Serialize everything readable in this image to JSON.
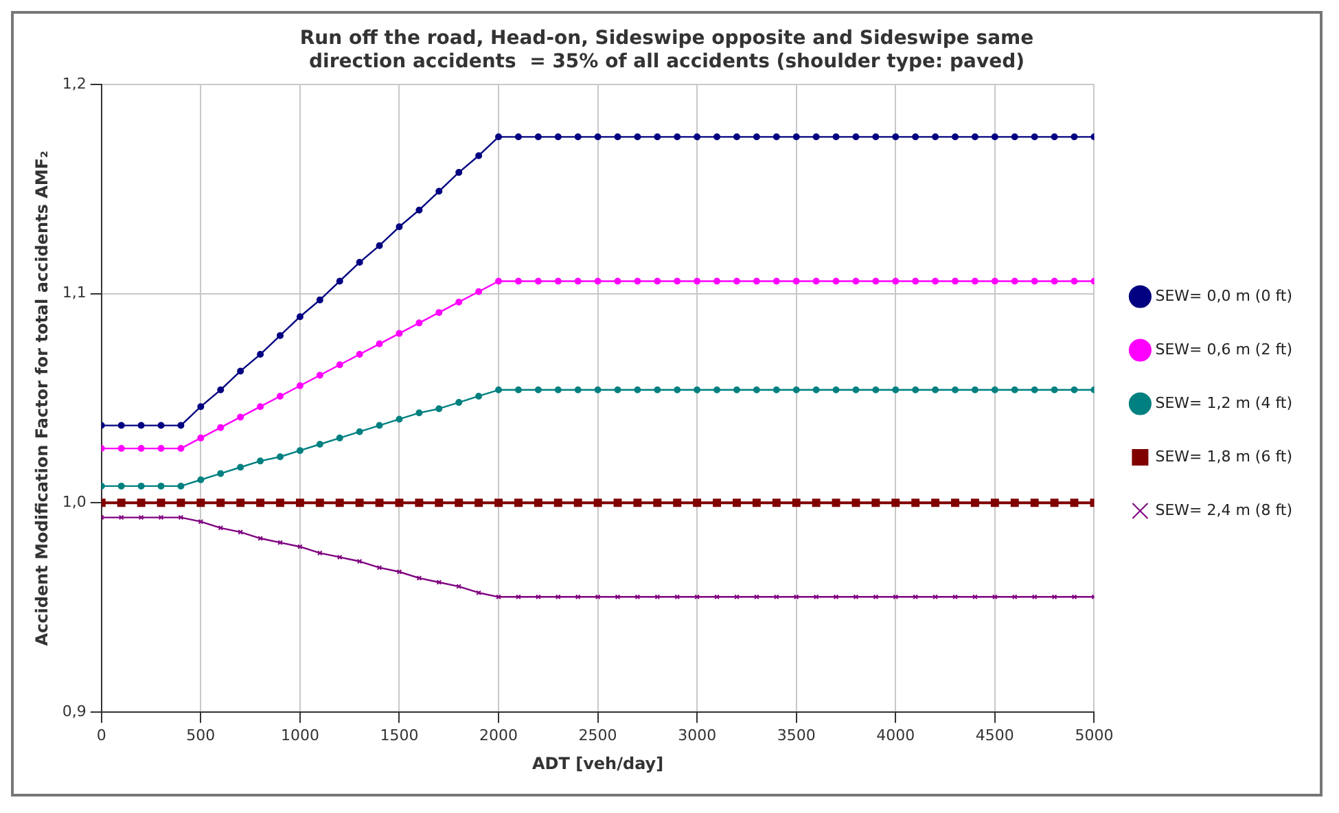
{
  "chart_data": {
    "type": "line",
    "title": "Run off the road, Head-on, Sideswipe opposite and Sideswipe same direction accidents  = 35% of all accidents (shoulder type: paved)",
    "xlabel": "ADT [veh/day]",
    "ylabel": "Accident Modification Factor for total accidents AMF₂",
    "x": [
      0,
      100,
      200,
      300,
      400,
      500,
      600,
      700,
      800,
      900,
      1000,
      1100,
      1200,
      1300,
      1400,
      1500,
      1600,
      1700,
      1800,
      1900,
      2000,
      2100,
      2200,
      2300,
      2400,
      2500,
      2600,
      2700,
      2800,
      2900,
      3000,
      3100,
      3200,
      3300,
      3400,
      3500,
      3600,
      3700,
      3800,
      3900,
      4000,
      4100,
      4200,
      4300,
      4400,
      4500,
      4600,
      4700,
      4800,
      4900,
      5000
    ],
    "series": [
      {
        "name": "SEW= 0,0 m (0 ft)",
        "color": "#000080",
        "marker": "circle",
        "values": [
          1.037,
          1.037,
          1.037,
          1.037,
          1.037,
          1.046,
          1.054,
          1.063,
          1.071,
          1.08,
          1.089,
          1.097,
          1.106,
          1.115,
          1.123,
          1.132,
          1.14,
          1.149,
          1.158,
          1.166,
          1.175,
          1.175,
          1.175,
          1.175,
          1.175,
          1.175,
          1.175,
          1.175,
          1.175,
          1.175,
          1.175,
          1.175,
          1.175,
          1.175,
          1.175,
          1.175,
          1.175,
          1.175,
          1.175,
          1.175,
          1.175,
          1.175,
          1.175,
          1.175,
          1.175,
          1.175,
          1.175,
          1.175,
          1.175,
          1.175,
          1.175
        ]
      },
      {
        "name": "SEW= 0,6 m (2 ft)",
        "color": "#ff00ff",
        "marker": "circle",
        "values": [
          1.026,
          1.026,
          1.026,
          1.026,
          1.026,
          1.031,
          1.036,
          1.041,
          1.046,
          1.051,
          1.056,
          1.061,
          1.066,
          1.071,
          1.076,
          1.081,
          1.086,
          1.091,
          1.096,
          1.101,
          1.106,
          1.106,
          1.106,
          1.106,
          1.106,
          1.106,
          1.106,
          1.106,
          1.106,
          1.106,
          1.106,
          1.106,
          1.106,
          1.106,
          1.106,
          1.106,
          1.106,
          1.106,
          1.106,
          1.106,
          1.106,
          1.106,
          1.106,
          1.106,
          1.106,
          1.106,
          1.106,
          1.106,
          1.106,
          1.106,
          1.106
        ]
      },
      {
        "name": "SEW= 1,2 m (4 ft)",
        "color": "#008080",
        "marker": "circle",
        "values": [
          1.008,
          1.008,
          1.008,
          1.008,
          1.008,
          1.011,
          1.014,
          1.017,
          1.02,
          1.022,
          1.025,
          1.028,
          1.031,
          1.034,
          1.037,
          1.04,
          1.043,
          1.045,
          1.048,
          1.051,
          1.054,
          1.054,
          1.054,
          1.054,
          1.054,
          1.054,
          1.054,
          1.054,
          1.054,
          1.054,
          1.054,
          1.054,
          1.054,
          1.054,
          1.054,
          1.054,
          1.054,
          1.054,
          1.054,
          1.054,
          1.054,
          1.054,
          1.054,
          1.054,
          1.054,
          1.054,
          1.054,
          1.054,
          1.054,
          1.054,
          1.054
        ]
      },
      {
        "name": "SEW= 1,8 m (6 ft)",
        "color": "#800000",
        "marker": "square",
        "values": [
          1.0,
          1.0,
          1.0,
          1.0,
          1.0,
          1.0,
          1.0,
          1.0,
          1.0,
          1.0,
          1.0,
          1.0,
          1.0,
          1.0,
          1.0,
          1.0,
          1.0,
          1.0,
          1.0,
          1.0,
          1.0,
          1.0,
          1.0,
          1.0,
          1.0,
          1.0,
          1.0,
          1.0,
          1.0,
          1.0,
          1.0,
          1.0,
          1.0,
          1.0,
          1.0,
          1.0,
          1.0,
          1.0,
          1.0,
          1.0,
          1.0,
          1.0,
          1.0,
          1.0,
          1.0,
          1.0,
          1.0,
          1.0,
          1.0,
          1.0,
          1.0
        ]
      },
      {
        "name": "SEW= 2,4 m (8 ft)",
        "color": "#800080",
        "marker": "cross",
        "values": [
          0.993,
          0.993,
          0.993,
          0.993,
          0.993,
          0.991,
          0.988,
          0.986,
          0.983,
          0.981,
          0.979,
          0.976,
          0.974,
          0.972,
          0.969,
          0.967,
          0.964,
          0.962,
          0.96,
          0.957,
          0.955,
          0.955,
          0.955,
          0.955,
          0.955,
          0.955,
          0.955,
          0.955,
          0.955,
          0.955,
          0.955,
          0.955,
          0.955,
          0.955,
          0.955,
          0.955,
          0.955,
          0.955,
          0.955,
          0.955,
          0.955,
          0.955,
          0.955,
          0.955,
          0.955,
          0.955,
          0.955,
          0.955,
          0.955,
          0.955,
          0.955
        ]
      }
    ],
    "xlim": [
      0,
      5000
    ],
    "xticks": [
      0,
      500,
      1000,
      1500,
      2000,
      2500,
      3000,
      3500,
      4000,
      4500,
      5000
    ],
    "ylim": [
      0.9,
      1.2
    ],
    "yticks": [
      {
        "value": 0.9,
        "label": "0,9"
      },
      {
        "value": 1.0,
        "label": "1,0"
      },
      {
        "value": 1.1,
        "label": "1,1"
      },
      {
        "value": 1.2,
        "label": "1,2"
      }
    ],
    "grid": true,
    "legend": "right",
    "line_style": "solid"
  }
}
